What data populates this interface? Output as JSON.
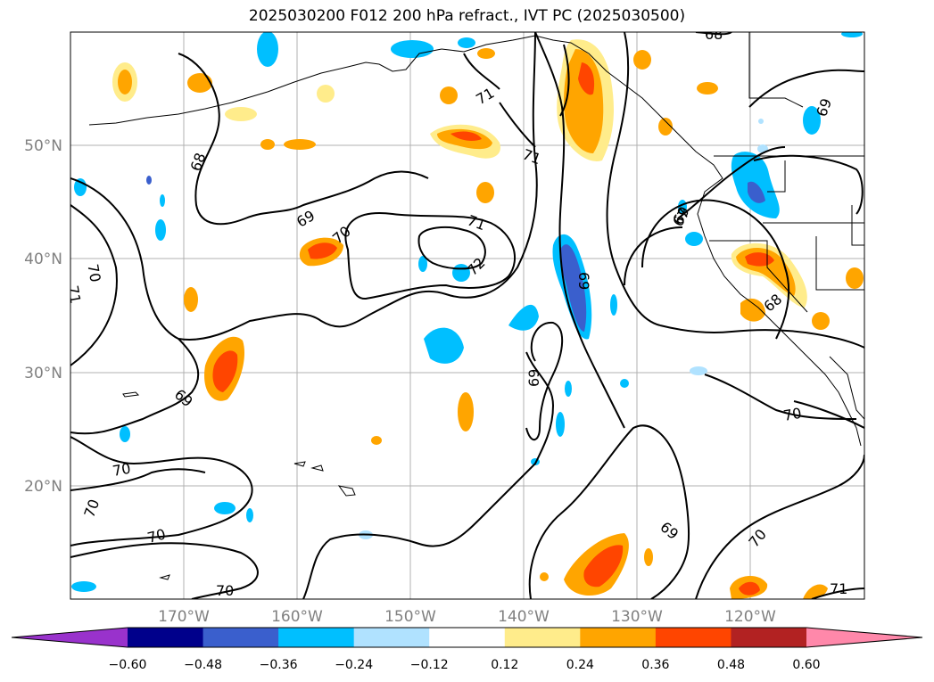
{
  "title": "2025030200 F012 200 hPa refract., IVT PC (2025030500)",
  "lat_labels": [
    "50°N",
    "40°N",
    "30°N",
    "20°N"
  ],
  "lon_labels": [
    "170°W",
    "160°W",
    "150°W",
    "140°W",
    "130°W",
    "120°W"
  ],
  "contour_labels": [
    "68",
    "68",
    "69",
    "69",
    "69",
    "69",
    "69",
    "69",
    "69",
    "70",
    "70",
    "70",
    "70",
    "70",
    "70",
    "70",
    "70",
    "71",
    "71",
    "71",
    "71",
    "71",
    "72",
    "67",
    "68"
  ],
  "colorbar": {
    "ticks": [
      "−0.60",
      "−0.48",
      "−0.36",
      "−0.24",
      "−0.12",
      "0.12",
      "0.24",
      "0.36",
      "0.48",
      "0.60"
    ],
    "colors": [
      "#9932cc",
      "#00008b",
      "#3a5fcd",
      "#00bfff",
      "#b0e2ff",
      "#ffffff",
      "#ffec8b",
      "#ffa500",
      "#ff4500",
      "#b22222",
      "#ff88aa"
    ]
  }
}
